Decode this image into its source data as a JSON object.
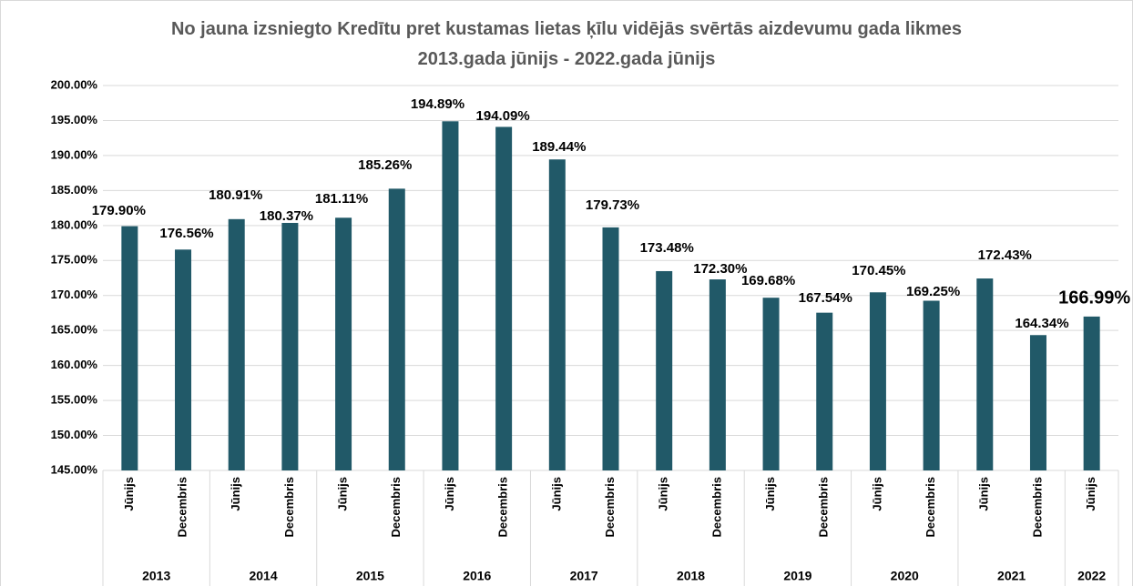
{
  "chart_data": {
    "type": "bar",
    "title": "No jauna izsniegto Kredītu pret kustamas lietas ķīlu vidējās svērtās aizdevumu gada likmes 2013.gada jūnijs - 2022.gada jūnijs",
    "category_groups": [
      {
        "name": "2013",
        "categories": [
          "Jūnijs",
          "Decembris"
        ]
      },
      {
        "name": "2014",
        "categories": [
          "Jūnijs",
          "Decembris"
        ]
      },
      {
        "name": "2015",
        "categories": [
          "Jūnijs",
          "Decembris"
        ]
      },
      {
        "name": "2016",
        "categories": [
          "Jūnijs",
          "Decembris"
        ]
      },
      {
        "name": "2017",
        "categories": [
          "Jūnijs",
          "Decembris"
        ]
      },
      {
        "name": "2018",
        "categories": [
          "Jūnijs",
          "Decembris"
        ]
      },
      {
        "name": "2019",
        "categories": [
          "Jūnijs",
          "Decembris"
        ]
      },
      {
        "name": "2020",
        "categories": [
          "Jūnijs",
          "Decembris"
        ]
      },
      {
        "name": "2021",
        "categories": [
          "Jūnijs",
          "Decembris"
        ]
      },
      {
        "name": "2022",
        "categories": [
          "Jūnijs"
        ]
      }
    ],
    "values": [
      179.9,
      176.56,
      180.91,
      180.37,
      181.11,
      185.26,
      194.89,
      194.09,
      189.44,
      179.73,
      173.48,
      172.3,
      169.68,
      167.54,
      170.45,
      169.25,
      172.43,
      164.34,
      166.99
    ],
    "value_labels": [
      "179.90%",
      "176.56%",
      "180.91%",
      "180.37%",
      "181.11%",
      "185.26%",
      "194.89%",
      "194.09%",
      "189.44%",
      "179.73%",
      "173.48%",
      "172.30%",
      "169.68%",
      "167.54%",
      "170.45%",
      "169.25%",
      "172.43%",
      "164.34%",
      "166.99%"
    ],
    "color": "#215968",
    "ylim": [
      145,
      200
    ],
    "yticks": [
      {
        "value": 145,
        "label": "145.00%"
      },
      {
        "value": 150,
        "label": "150.00%"
      },
      {
        "value": 155,
        "label": "155.00%"
      },
      {
        "value": 160,
        "label": "160.00%"
      },
      {
        "value": 165,
        "label": "165.00%"
      },
      {
        "value": 170,
        "label": "170.00%"
      },
      {
        "value": 175,
        "label": "175.00%"
      },
      {
        "value": 180,
        "label": "180.00%"
      },
      {
        "value": 185,
        "label": "185.00%"
      },
      {
        "value": 190,
        "label": "190.00%"
      },
      {
        "value": 195,
        "label": "195.00%"
      },
      {
        "value": 200,
        "label": "200.00%"
      }
    ],
    "grid": true
  }
}
